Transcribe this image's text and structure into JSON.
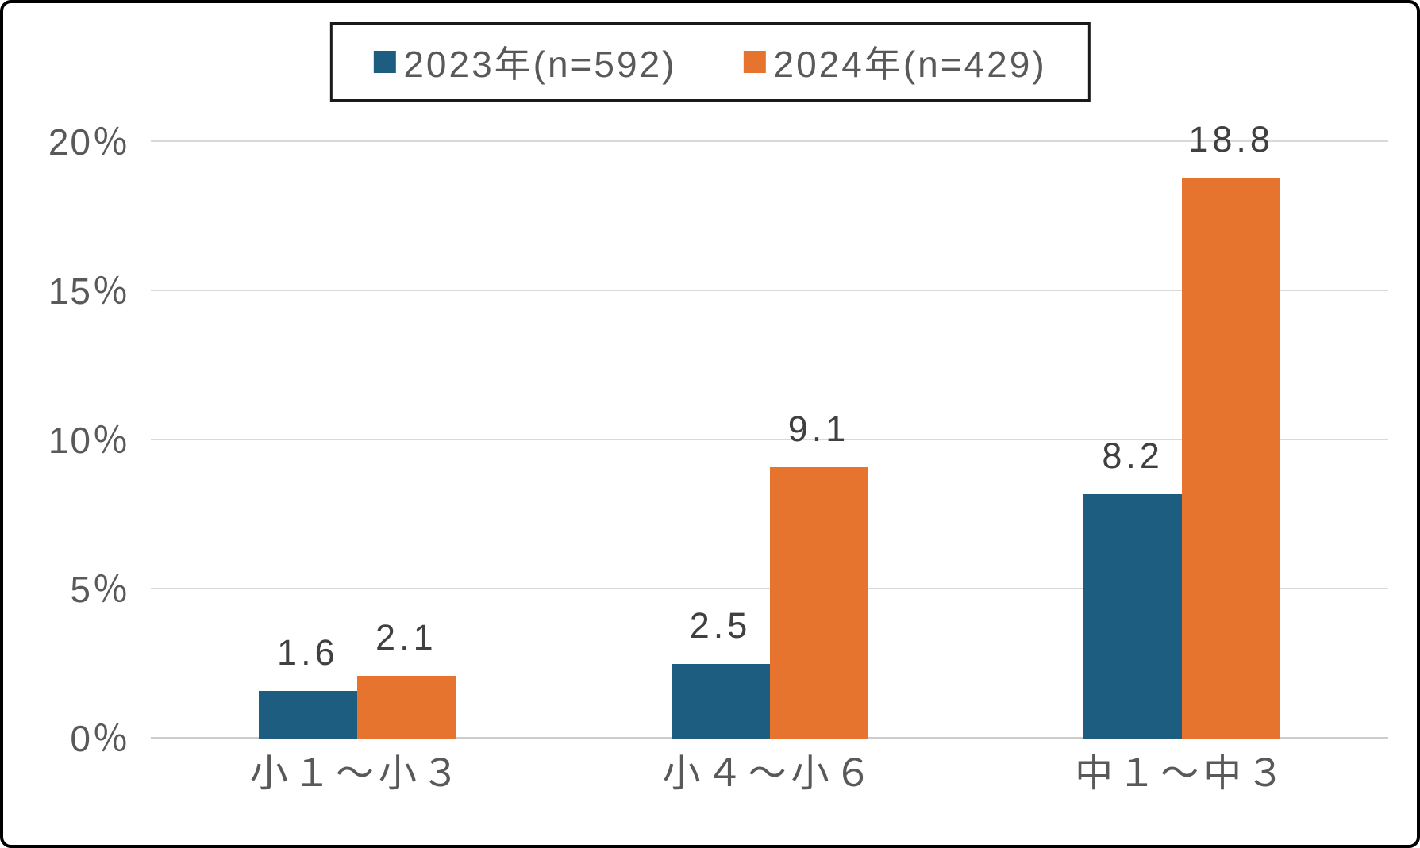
{
  "chart_data": {
    "type": "bar",
    "categories": [
      "小１〜小３",
      "小４〜小６",
      "中１〜中３"
    ],
    "series": [
      {
        "name": "2023年(n=592)",
        "color": "#1d5e80",
        "values": [
          1.6,
          2.5,
          8.2
        ]
      },
      {
        "name": "2024年(n=429)",
        "color": "#e7742e",
        "values": [
          2.1,
          9.1,
          18.8
        ]
      }
    ],
    "title": "",
    "xlabel": "",
    "ylabel": "",
    "ylim": [
      0,
      20
    ],
    "yticks": [
      "0％",
      "5％",
      "10％",
      "15％",
      "20％"
    ],
    "grid": true,
    "legend_position": "top",
    "gridline_color": "#d9d9d9",
    "text_color": "#595959",
    "data_label_color": "#404040"
  }
}
